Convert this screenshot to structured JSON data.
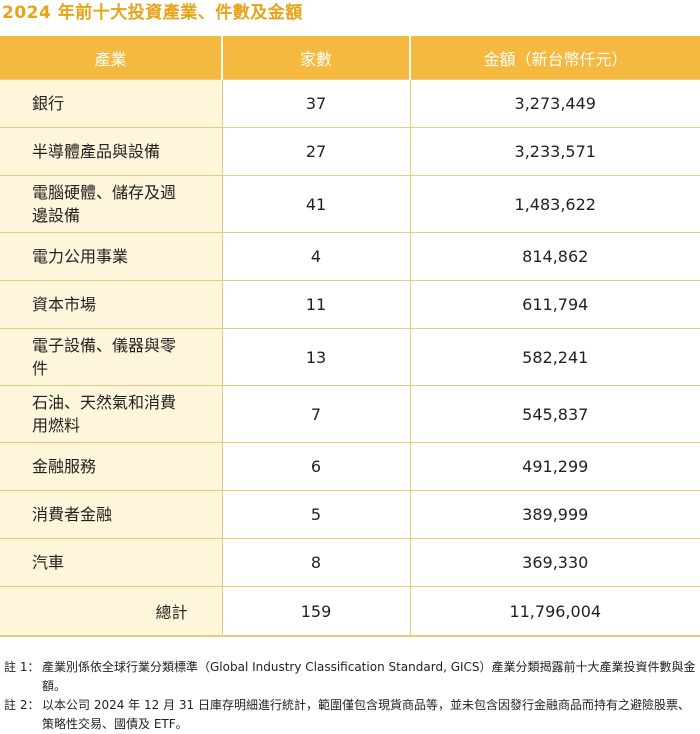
{
  "title": "2024 年前十大投資產業、件數及金額",
  "table": {
    "headers": [
      "產業",
      "家數",
      "金額（新台幣仟元）"
    ],
    "rows": [
      {
        "industry": "銀行",
        "count": "37",
        "amount": "3,273,449"
      },
      {
        "industry": "半導體產品與設備",
        "count": "27",
        "amount": "3,233,571"
      },
      {
        "industry": "電腦硬體、儲存及週邊設備",
        "count": "41",
        "amount": "1,483,622"
      },
      {
        "industry": "電力公用事業",
        "count": "4",
        "amount": "814,862"
      },
      {
        "industry": "資本市場",
        "count": "11",
        "amount": "611,794"
      },
      {
        "industry": "電子設備、儀器與零件",
        "count": "13",
        "amount": "582,241"
      },
      {
        "industry": "石油、天然氣和消費用燃料",
        "count": "7",
        "amount": "545,837"
      },
      {
        "industry": "金融服務",
        "count": "6",
        "amount": "491,299"
      },
      {
        "industry": "消費者金融",
        "count": "5",
        "amount": "389,999"
      },
      {
        "industry": "汽車",
        "count": "8",
        "amount": "369,330"
      }
    ],
    "total": {
      "label": "總計",
      "count": "159",
      "amount": "11,796,004"
    }
  },
  "notes": [
    {
      "label": "註 1：",
      "text": "產業別係依全球行業分類標準（Global Industry Classification Standard, GICS）產業分類揭露前十大產業投資件數與金額。"
    },
    {
      "label": "註 2：",
      "text": "以本公司 2024 年 12 月 31 日庫存明細進行統計，範圍僅包含現貨商品等，並未包含因發行金融商品而持有之避險股票、策略性交易、國債及 ETF。"
    }
  ]
}
